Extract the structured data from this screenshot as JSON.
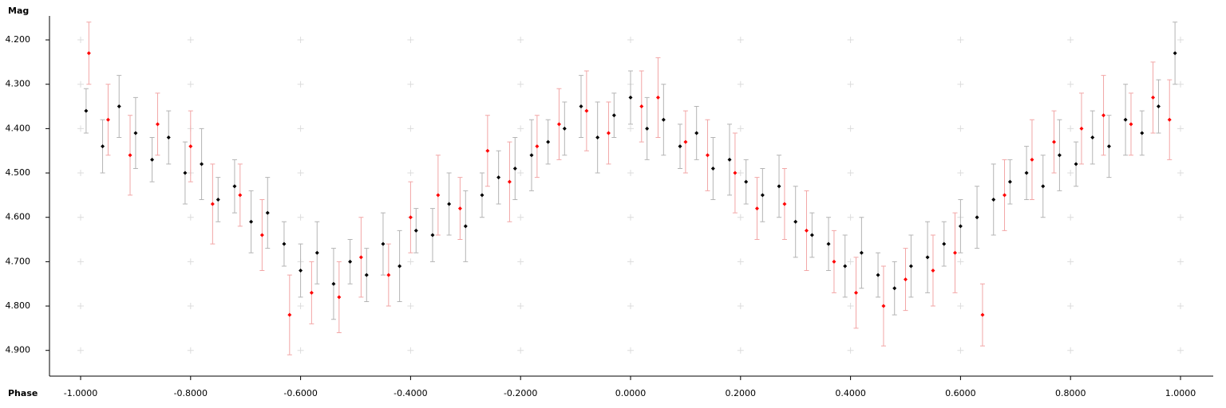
{
  "chart_data": {
    "type": "scatter_errorbar",
    "xlabel": "Phase",
    "ylabel": "Mag",
    "xlim": [
      -1.0566,
      1.0595
    ],
    "ylim": [
      4.146,
      4.958
    ],
    "y_reversed": true,
    "xticks": [
      {
        "value": -1,
        "label": "-1.0000"
      },
      {
        "value": -0.8,
        "label": "-0.8000"
      },
      {
        "value": -0.6,
        "label": "-0.6000"
      },
      {
        "value": -0.4,
        "label": "-0.4000"
      },
      {
        "value": -0.2,
        "label": "-0.2000"
      },
      {
        "value": 0,
        "label": "0.0000"
      },
      {
        "value": 0.2,
        "label": "0.2000"
      },
      {
        "value": 0.4,
        "label": "0.4000"
      },
      {
        "value": 0.6,
        "label": "0.6000"
      },
      {
        "value": 0.8,
        "label": "0.8000"
      },
      {
        "value": 1,
        "label": "1.0000"
      }
    ],
    "yticks": [
      {
        "value": 4.2,
        "label": "4.200"
      },
      {
        "value": 4.3,
        "label": "4.300"
      },
      {
        "value": 4.4,
        "label": "4.400"
      },
      {
        "value": 4.5,
        "label": "4.500"
      },
      {
        "value": 4.6,
        "label": "4.600"
      },
      {
        "value": 4.7,
        "label": "4.700"
      },
      {
        "value": 4.8,
        "label": "4.800"
      },
      {
        "value": 4.9,
        "label": "4.900"
      }
    ],
    "grid": true,
    "series": [
      {
        "color": "#000000",
        "error_color": "#b4b4b4",
        "x": [
          -0.99,
          -0.96,
          -0.93,
          -0.9,
          -0.87,
          -0.84,
          -0.81,
          -0.78,
          -0.75,
          -0.72,
          -0.69,
          -0.66,
          -0.63,
          -0.6,
          -0.57,
          -0.54,
          -0.51,
          -0.48,
          -0.45,
          -0.42,
          -0.39,
          -0.36,
          -0.33,
          -0.3,
          -0.27,
          -0.24,
          -0.21,
          -0.18,
          -0.15,
          -0.12,
          -0.09,
          -0.06,
          -0.03,
          0,
          0.03,
          0.06,
          0.09,
          0.12,
          0.15,
          0.18,
          0.21,
          0.24,
          0.27,
          0.3,
          0.33,
          0.36,
          0.39,
          0.42,
          0.45,
          0.48,
          0.51,
          0.54,
          0.57,
          0.6,
          0.63,
          0.66,
          0.69,
          0.72,
          0.75,
          0.78,
          0.81,
          0.84,
          0.87,
          0.9,
          0.93,
          0.96,
          0.99
        ],
        "values": [
          4.36,
          4.44,
          4.35,
          4.41,
          4.47,
          4.42,
          4.5,
          4.48,
          4.56,
          4.53,
          4.61,
          4.59,
          4.66,
          4.72,
          4.68,
          4.75,
          4.7,
          4.73,
          4.66,
          4.71,
          4.63,
          4.64,
          4.57,
          4.62,
          4.55,
          4.51,
          4.49,
          4.46,
          4.43,
          4.4,
          4.35,
          4.42,
          4.37,
          4.33,
          4.4,
          4.38,
          4.44,
          4.41,
          4.49,
          4.47,
          4.52,
          4.55,
          4.53,
          4.61,
          4.64,
          4.66,
          4.71,
          4.68,
          4.73,
          4.76,
          4.71,
          4.69,
          4.66,
          4.62,
          4.6,
          4.56,
          4.52,
          4.5,
          4.53,
          4.46,
          4.48,
          4.42,
          4.44,
          4.38,
          4.41,
          4.35,
          4.23
        ],
        "errors": [
          0.05,
          0.06,
          0.07,
          0.08,
          0.05,
          0.06,
          0.07,
          0.08,
          0.05,
          0.06,
          0.07,
          0.08,
          0.05,
          0.06,
          0.07,
          0.08,
          0.05,
          0.06,
          0.07,
          0.08,
          0.05,
          0.06,
          0.07,
          0.08,
          0.05,
          0.06,
          0.07,
          0.08,
          0.05,
          0.06,
          0.07,
          0.08,
          0.05,
          0.06,
          0.07,
          0.08,
          0.05,
          0.06,
          0.07,
          0.08,
          0.05,
          0.06,
          0.07,
          0.08,
          0.05,
          0.06,
          0.07,
          0.08,
          0.05,
          0.06,
          0.07,
          0.08,
          0.05,
          0.06,
          0.07,
          0.08,
          0.05,
          0.06,
          0.07,
          0.08,
          0.05,
          0.06,
          0.07,
          0.08,
          0.05,
          0.06,
          0.07
        ]
      },
      {
        "color": "#ff0000",
        "error_color": "#f2a6a6",
        "x": [
          -0.985,
          -0.95,
          -0.91,
          -0.86,
          -0.8,
          -0.76,
          -0.71,
          -0.67,
          -0.62,
          -0.58,
          -0.53,
          -0.49,
          -0.44,
          -0.4,
          -0.35,
          -0.31,
          -0.26,
          -0.22,
          -0.17,
          -0.13,
          -0.08,
          -0.04,
          0.02,
          0.05,
          0.1,
          0.14,
          0.19,
          0.23,
          0.28,
          0.32,
          0.37,
          0.41,
          0.46,
          0.5,
          0.55,
          0.59,
          0.64,
          0.68,
          0.73,
          0.77,
          0.82,
          0.86,
          0.91,
          0.95,
          0.98
        ],
        "values": [
          4.23,
          4.38,
          4.46,
          4.39,
          4.44,
          4.57,
          4.55,
          4.64,
          4.82,
          4.77,
          4.78,
          4.69,
          4.73,
          4.6,
          4.55,
          4.58,
          4.45,
          4.52,
          4.44,
          4.39,
          4.36,
          4.41,
          4.35,
          4.33,
          4.43,
          4.46,
          4.5,
          4.58,
          4.57,
          4.63,
          4.7,
          4.77,
          4.8,
          4.74,
          4.72,
          4.68,
          4.82,
          4.55,
          4.47,
          4.43,
          4.4,
          4.37,
          4.39,
          4.33,
          4.38
        ],
        "errors": [
          0.07,
          0.08,
          0.09,
          0.07,
          0.08,
          0.09,
          0.07,
          0.08,
          0.09,
          0.07,
          0.08,
          0.09,
          0.07,
          0.08,
          0.09,
          0.07,
          0.08,
          0.09,
          0.07,
          0.08,
          0.09,
          0.07,
          0.08,
          0.09,
          0.07,
          0.08,
          0.09,
          0.07,
          0.08,
          0.09,
          0.07,
          0.08,
          0.09,
          0.07,
          0.08,
          0.09,
          0.07,
          0.08,
          0.09,
          0.07,
          0.08,
          0.09,
          0.07,
          0.08,
          0.09
        ]
      }
    ]
  }
}
